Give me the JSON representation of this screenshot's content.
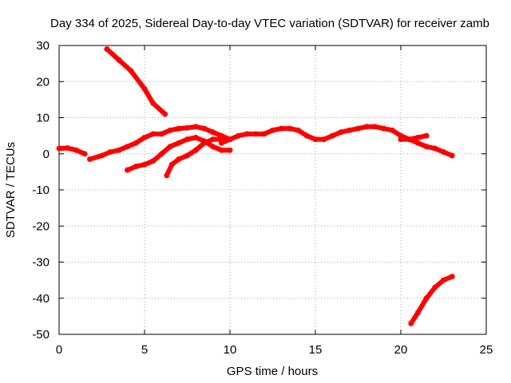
{
  "chart_data": {
    "type": "scatter",
    "title": "Day 334 of 2025, Sidereal Day-to-day VTEC variation (SDTVAR) for receiver zamb",
    "xlabel": "GPS time / hours",
    "ylabel": "SDTVAR / TECUs",
    "xlim": [
      0,
      25
    ],
    "ylim": [
      -50,
      30
    ],
    "grid": true,
    "xticks": [
      0,
      5,
      10,
      15,
      20,
      25
    ],
    "yticks": [
      -50,
      -40,
      -30,
      -20,
      -10,
      0,
      10,
      20,
      30
    ],
    "series_color": "#ff0000",
    "series": [
      {
        "name": "arc-1",
        "points": [
          [
            0,
            1.5
          ],
          [
            0.5,
            1.6
          ],
          [
            1,
            1
          ],
          [
            1.5,
            0
          ]
        ]
      },
      {
        "name": "arc-2",
        "points": [
          [
            1.8,
            -1.5
          ],
          [
            2.5,
            -0.5
          ],
          [
            3,
            0.5
          ],
          [
            3.5,
            1
          ],
          [
            4,
            2
          ],
          [
            4.5,
            3
          ],
          [
            5,
            4.5
          ],
          [
            5.5,
            5.5
          ],
          [
            6,
            5.5
          ],
          [
            6.5,
            6.5
          ],
          [
            7,
            7
          ],
          [
            7.5,
            7.2
          ],
          [
            8,
            7.5
          ],
          [
            8.5,
            7
          ],
          [
            9,
            6
          ],
          [
            9.5,
            5
          ],
          [
            10,
            4
          ]
        ]
      },
      {
        "name": "arc-3",
        "points": [
          [
            2.8,
            29
          ],
          [
            3.5,
            26
          ],
          [
            4.2,
            23
          ],
          [
            5,
            18
          ],
          [
            5.5,
            14
          ],
          [
            6.2,
            11
          ]
        ]
      },
      {
        "name": "arc-4",
        "points": [
          [
            4,
            -4.5
          ],
          [
            4.5,
            -3.5
          ],
          [
            5,
            -3
          ],
          [
            5.5,
            -2
          ],
          [
            6,
            0
          ],
          [
            6.5,
            2
          ],
          [
            7,
            3
          ],
          [
            7.5,
            4
          ],
          [
            8,
            4.5
          ],
          [
            8.5,
            3.5
          ],
          [
            9,
            2
          ],
          [
            9.5,
            1
          ],
          [
            10,
            1
          ]
        ]
      },
      {
        "name": "arc-5",
        "points": [
          [
            6.3,
            -6
          ],
          [
            6.6,
            -3
          ],
          [
            7,
            -1.5
          ],
          [
            7.5,
            -0.5
          ],
          [
            8,
            1
          ],
          [
            8.5,
            3
          ],
          [
            9,
            4
          ],
          [
            9.5,
            4
          ],
          [
            10,
            4
          ]
        ]
      },
      {
        "name": "arc-6",
        "points": [
          [
            9.5,
            3
          ],
          [
            10,
            4
          ],
          [
            10.5,
            5
          ],
          [
            11,
            5.5
          ],
          [
            11.5,
            5.5
          ],
          [
            12,
            5.5
          ],
          [
            12.5,
            6.5
          ],
          [
            13,
            7
          ],
          [
            13.5,
            7
          ],
          [
            14,
            6.5
          ],
          [
            14.5,
            5
          ],
          [
            15,
            4
          ],
          [
            15.5,
            4
          ],
          [
            16,
            5
          ],
          [
            16.5,
            6
          ],
          [
            17,
            6.5
          ],
          [
            17.5,
            7
          ],
          [
            18,
            7.5
          ],
          [
            18.5,
            7.5
          ],
          [
            19,
            7
          ],
          [
            19.5,
            6.5
          ],
          [
            20,
            5
          ],
          [
            20.5,
            4
          ],
          [
            21,
            3
          ],
          [
            21.5,
            2
          ],
          [
            22,
            1.5
          ],
          [
            22.5,
            0.5
          ],
          [
            23,
            -0.5
          ]
        ]
      },
      {
        "name": "arc-7",
        "points": [
          [
            20,
            4
          ],
          [
            20.5,
            4
          ],
          [
            21,
            4.5
          ],
          [
            21.5,
            5
          ]
        ]
      },
      {
        "name": "arc-8",
        "points": [
          [
            20.6,
            -47
          ],
          [
            21,
            -44
          ],
          [
            21.5,
            -40
          ],
          [
            22,
            -37
          ],
          [
            22.5,
            -35
          ],
          [
            23,
            -34
          ]
        ]
      }
    ]
  }
}
